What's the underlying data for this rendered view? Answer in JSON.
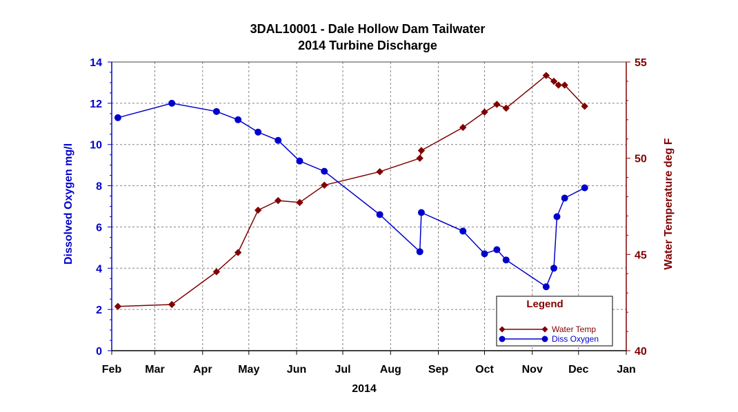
{
  "chart_data": {
    "type": "line",
    "title": "3DAL10001  -  Dale Hollow Dam Tailwater",
    "subtitle": "2014 Turbine Discharge",
    "xlabel": "2014",
    "x_tick_labels": [
      "Feb",
      "Mar",
      "Apr",
      "May",
      "Jun",
      "Jul",
      "Aug",
      "Sep",
      "Oct",
      "Nov",
      "Dec",
      "Jan"
    ],
    "xlim": [
      "2014-02-01",
      "2015-01-01"
    ],
    "y_left": {
      "label": "Dissolved  Oxygen  mg/l",
      "ylim": [
        0,
        14
      ],
      "ticks": [
        0,
        2,
        4,
        6,
        8,
        10,
        12,
        14
      ],
      "color": "#0000CC"
    },
    "y_right": {
      "label": "Water  Temperature  deg F",
      "ylim": [
        40,
        55
      ],
      "ticks": [
        40,
        45,
        50,
        55
      ],
      "color": "#800000"
    },
    "grid": true,
    "legend": {
      "title": "Legend",
      "placement": "bottom-right",
      "entries": [
        "Water Temp",
        "Diss Oxygen"
      ]
    },
    "series": [
      {
        "name": "Water Temp",
        "axis": "right",
        "color": "#800000",
        "marker": "diamond",
        "points": [
          [
            "2014-02-05",
            42.3
          ],
          [
            "2014-03-12",
            42.4
          ],
          [
            "2014-04-10",
            44.1
          ],
          [
            "2014-04-24",
            45.1
          ],
          [
            "2014-05-07",
            47.3
          ],
          [
            "2014-05-20",
            47.8
          ],
          [
            "2014-06-03",
            47.7
          ],
          [
            "2014-06-19",
            48.6
          ],
          [
            "2014-07-25",
            49.3
          ],
          [
            "2014-08-20",
            50.0
          ],
          [
            "2014-08-21",
            50.4
          ],
          [
            "2014-09-17",
            51.6
          ],
          [
            "2014-10-01",
            52.4
          ],
          [
            "2014-10-09",
            52.8
          ],
          [
            "2014-10-15",
            52.6
          ],
          [
            "2014-11-10",
            54.3
          ],
          [
            "2014-11-15",
            54.0
          ],
          [
            "2014-11-18",
            53.8
          ],
          [
            "2014-11-22",
            53.8
          ],
          [
            "2014-12-05",
            52.7
          ]
        ]
      },
      {
        "name": "Diss Oxygen",
        "axis": "left",
        "color": "#0000CC",
        "marker": "circle",
        "points": [
          [
            "2014-02-05",
            11.3
          ],
          [
            "2014-03-12",
            12.0
          ],
          [
            "2014-04-10",
            11.6
          ],
          [
            "2014-04-24",
            11.2
          ],
          [
            "2014-05-07",
            10.6
          ],
          [
            "2014-05-20",
            10.2
          ],
          [
            "2014-06-03",
            9.2
          ],
          [
            "2014-06-19",
            8.7
          ],
          [
            "2014-07-25",
            6.6
          ],
          [
            "2014-08-20",
            4.8
          ],
          [
            "2014-08-21",
            6.7
          ],
          [
            "2014-09-17",
            5.8
          ],
          [
            "2014-10-01",
            4.7
          ],
          [
            "2014-10-09",
            4.9
          ],
          [
            "2014-10-15",
            4.4
          ],
          [
            "2014-11-10",
            3.1
          ],
          [
            "2014-11-15",
            4.0
          ],
          [
            "2014-11-17",
            6.5
          ],
          [
            "2014-11-22",
            7.4
          ],
          [
            "2014-12-05",
            7.9
          ]
        ]
      }
    ]
  }
}
